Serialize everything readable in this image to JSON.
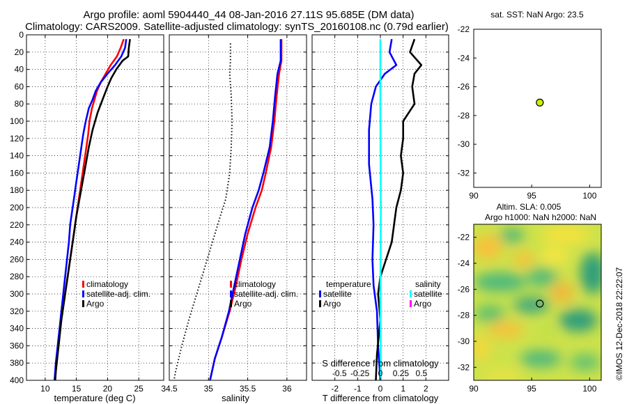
{
  "title_line1": "Argo profile: aoml 5904440_44 08-Jan-2016 27.11S 95.685E (DM data)",
  "title_line2": "Climatology: CARS2009. Satellite-adjusted climatology: synTS_20160108.nc (0.79d earlier)",
  "colors": {
    "climatology": "#ff0000",
    "satellite": "#0000ff",
    "argo": "#000000",
    "salinity_satellite": "#00ffff",
    "salinity_argo": "#ff00ff",
    "float_marker": "#c8f000"
  },
  "chart_data": [
    {
      "id": "temperature",
      "type": "line",
      "xlabel": "temperature (deg C)",
      "ylabel": "",
      "xlim": [
        7,
        29
      ],
      "ylim": [
        400,
        0
      ],
      "xticks": [
        10,
        15,
        20,
        25
      ],
      "yticks": [
        0,
        20,
        40,
        60,
        80,
        100,
        120,
        140,
        160,
        180,
        200,
        220,
        240,
        260,
        280,
        300,
        320,
        340,
        360,
        380,
        400
      ],
      "grid": true,
      "legend": [
        "climatology",
        "satellite-adj. clim.",
        "Argo"
      ],
      "legend_position": "lower-right",
      "series": [
        {
          "name": "climatology",
          "color_key": "climatology",
          "points": [
            [
              22.6,
              5
            ],
            [
              22.1,
              15
            ],
            [
              21.5,
              25
            ],
            [
              20.5,
              35
            ],
            [
              19.7,
              45
            ],
            [
              18.9,
              55
            ],
            [
              18.3,
              65
            ],
            [
              17.9,
              75
            ],
            [
              17.5,
              85
            ],
            [
              17.1,
              100
            ],
            [
              16.9,
              115
            ],
            [
              16.6,
              130
            ],
            [
              16.3,
              145
            ],
            [
              16.0,
              160
            ],
            [
              15.7,
              175
            ],
            [
              15.4,
              190
            ],
            [
              15.1,
              205
            ],
            [
              14.8,
              220
            ],
            [
              14.4,
              240
            ],
            [
              14.0,
              260
            ],
            [
              13.6,
              280
            ],
            [
              13.2,
              300
            ],
            [
              12.8,
              320
            ],
            [
              12.4,
              340
            ],
            [
              12.1,
              360
            ],
            [
              11.8,
              380
            ],
            [
              11.6,
              400
            ]
          ]
        },
        {
          "name": "satellite-adj. clim.",
          "color_key": "satellite",
          "points": [
            [
              23.0,
              5
            ],
            [
              22.8,
              15
            ],
            [
              22.2,
              25
            ],
            [
              21.2,
              35
            ],
            [
              20.0,
              45
            ],
            [
              18.9,
              55
            ],
            [
              18.1,
              65
            ],
            [
              17.6,
              75
            ],
            [
              17.0,
              85
            ],
            [
              16.5,
              100
            ],
            [
              16.1,
              115
            ],
            [
              15.8,
              130
            ],
            [
              15.5,
              145
            ],
            [
              15.2,
              160
            ],
            [
              14.9,
              175
            ],
            [
              14.6,
              190
            ],
            [
              14.3,
              205
            ],
            [
              14.0,
              220
            ],
            [
              13.8,
              240
            ],
            [
              13.5,
              260
            ],
            [
              13.2,
              280
            ],
            [
              12.9,
              300
            ],
            [
              12.6,
              320
            ],
            [
              12.3,
              340
            ],
            [
              12.0,
              360
            ],
            [
              11.7,
              380
            ],
            [
              11.5,
              400
            ]
          ]
        },
        {
          "name": "Argo",
          "color_key": "argo",
          "points": [
            [
              23.6,
              5
            ],
            [
              23.4,
              15
            ],
            [
              23.3,
              25
            ],
            [
              22.4,
              30
            ],
            [
              21.4,
              40
            ],
            [
              20.6,
              50
            ],
            [
              20.0,
              60
            ],
            [
              19.2,
              75
            ],
            [
              18.4,
              90
            ],
            [
              17.6,
              110
            ],
            [
              17.0,
              130
            ],
            [
              16.5,
              150
            ],
            [
              16.0,
              170
            ],
            [
              15.5,
              190
            ],
            [
              15.0,
              210
            ],
            [
              14.6,
              230
            ],
            [
              14.2,
              250
            ],
            [
              13.8,
              270
            ],
            [
              13.4,
              290
            ],
            [
              13.0,
              310
            ],
            [
              12.6,
              330
            ],
            [
              12.3,
              350
            ],
            [
              12.0,
              370
            ],
            [
              11.7,
              390
            ],
            [
              11.6,
              400
            ]
          ]
        }
      ]
    },
    {
      "id": "salinity",
      "type": "line",
      "xlabel": "salinity",
      "xlim": [
        34.5,
        36.25
      ],
      "ylim": [
        400,
        0
      ],
      "xticks": [
        34.5,
        35,
        35.5,
        36
      ],
      "xtick_labels": [
        "34.5",
        "35",
        "35.5",
        "36"
      ],
      "grid": true,
      "legend": [
        "climatology",
        "satellite-adj. clim.",
        "Argo"
      ],
      "legend_position": "lower-right",
      "series": [
        {
          "name": "climatology",
          "color_key": "climatology",
          "points": [
            [
              35.93,
              5
            ],
            [
              35.93,
              15
            ],
            [
              35.93,
              30
            ],
            [
              35.9,
              45
            ],
            [
              35.87,
              70
            ],
            [
              35.84,
              100
            ],
            [
              35.8,
              130
            ],
            [
              35.73,
              160
            ],
            [
              35.68,
              180
            ],
            [
              35.6,
              200
            ],
            [
              35.5,
              230
            ],
            [
              35.42,
              260
            ],
            [
              35.35,
              290
            ],
            [
              35.27,
              320
            ],
            [
              35.17,
              350
            ],
            [
              35.08,
              375
            ],
            [
              35.02,
              400
            ]
          ]
        },
        {
          "name": "satellite-adj. clim.",
          "color_key": "satellite",
          "points": [
            [
              35.92,
              5
            ],
            [
              35.92,
              15
            ],
            [
              35.92,
              30
            ],
            [
              35.88,
              45
            ],
            [
              35.85,
              70
            ],
            [
              35.82,
              100
            ],
            [
              35.78,
              130
            ],
            [
              35.7,
              160
            ],
            [
              35.64,
              180
            ],
            [
              35.56,
              200
            ],
            [
              35.47,
              230
            ],
            [
              35.4,
              260
            ],
            [
              35.33,
              290
            ],
            [
              35.26,
              320
            ],
            [
              35.17,
              350
            ],
            [
              35.08,
              375
            ],
            [
              35.02,
              400
            ]
          ]
        },
        {
          "name": "Argo",
          "color_key": "argo",
          "points": [
            [
              35.28,
              10
            ],
            [
              35.28,
              30
            ],
            [
              35.27,
              45
            ],
            [
              35.29,
              70
            ],
            [
              35.3,
              100
            ],
            [
              35.29,
              130
            ],
            [
              35.27,
              160
            ],
            [
              35.22,
              190
            ],
            [
              35.15,
              210
            ],
            [
              35.05,
              240
            ],
            [
              34.95,
              270
            ],
            [
              34.85,
              300
            ],
            [
              34.75,
              330
            ],
            [
              34.66,
              360
            ],
            [
              34.58,
              390
            ],
            [
              34.56,
              400
            ]
          ],
          "style": "dotted"
        }
      ]
    },
    {
      "id": "difference",
      "type": "line",
      "xlabel": "T difference from climatology",
      "xlabel_top": "S difference from climatology",
      "xlim": [
        -3,
        3
      ],
      "ylim": [
        400,
        0
      ],
      "xticks": [
        -2,
        -1,
        0,
        1,
        2
      ],
      "xtick_labels": [
        "-2",
        "-1",
        "0",
        "1",
        "2"
      ],
      "xticks_secondary": [
        -0.5,
        -0.25,
        0,
        0.25,
        0.5
      ],
      "xtick_labels_secondary": [
        "-0.5",
        "-0.25",
        "0",
        "0.25",
        "0.5"
      ],
      "grid": true,
      "legend_temperature_title": "temperature",
      "legend_salinity_title": "salinity",
      "legend_temperature": [
        "satellite",
        "Argo"
      ],
      "legend_salinity": [
        "satellite",
        "Argo"
      ],
      "series": [
        {
          "name": "T satellite",
          "color_key": "satellite",
          "points": [
            [
              0.5,
              5
            ],
            [
              0.4,
              20
            ],
            [
              0.7,
              35
            ],
            [
              0.2,
              45
            ],
            [
              -0.2,
              60
            ],
            [
              -0.4,
              80
            ],
            [
              -0.5,
              110
            ],
            [
              -0.5,
              150
            ],
            [
              -0.35,
              190
            ],
            [
              -0.3,
              220
            ],
            [
              -0.35,
              260
            ],
            [
              -0.3,
              290
            ],
            [
              -0.15,
              320
            ],
            [
              -0.1,
              360
            ],
            [
              0.0,
              400
            ]
          ]
        },
        {
          "name": "T Argo",
          "color_key": "argo",
          "points": [
            [
              1.5,
              5
            ],
            [
              1.3,
              20
            ],
            [
              1.8,
              35
            ],
            [
              1.5,
              45
            ],
            [
              1.4,
              60
            ],
            [
              1.5,
              80
            ],
            [
              1.0,
              100
            ],
            [
              1.0,
              120
            ],
            [
              0.9,
              140
            ],
            [
              1.0,
              160
            ],
            [
              0.9,
              180
            ],
            [
              0.7,
              200
            ],
            [
              0.6,
              220
            ],
            [
              0.5,
              240
            ],
            [
              0.25,
              260
            ],
            [
              0.0,
              280
            ],
            [
              -0.1,
              300
            ],
            [
              0.0,
              330
            ],
            [
              -0.15,
              370
            ],
            [
              -0.2,
              400
            ]
          ]
        },
        {
          "name": "S satellite",
          "color_key": "salinity_satellite",
          "points": [
            [
              0.0,
              5
            ],
            [
              0.0,
              100
            ],
            [
              0.02,
              200
            ],
            [
              0.0,
              300
            ],
            [
              0.02,
              400
            ]
          ]
        }
      ]
    },
    {
      "id": "sst_map",
      "type": "scatter",
      "title": "sat. SST: NaN Argo: 23.5",
      "xlim": [
        90,
        101
      ],
      "ylim": [
        -33,
        -22
      ],
      "xticks": [
        90,
        95,
        100
      ],
      "yticks": [
        -22,
        -24,
        -26,
        -28,
        -30,
        -32
      ],
      "float_position": [
        95.7,
        -27.1
      ]
    },
    {
      "id": "sla_map",
      "type": "heatmap",
      "title_line1": "Altim. SLA: 0.005",
      "title_line2": "Argo h1000: NaN h2000: NaN",
      "xlim": [
        90,
        101
      ],
      "ylim": [
        -33,
        -21
      ],
      "xticks": [
        90,
        95,
        100
      ],
      "yticks": [
        -22,
        -24,
        -26,
        -28,
        -30,
        -32
      ],
      "float_position": [
        95.7,
        -27.1
      ]
    }
  ],
  "watermark": "©IMOS 12-Dec-2018 22:22:07"
}
